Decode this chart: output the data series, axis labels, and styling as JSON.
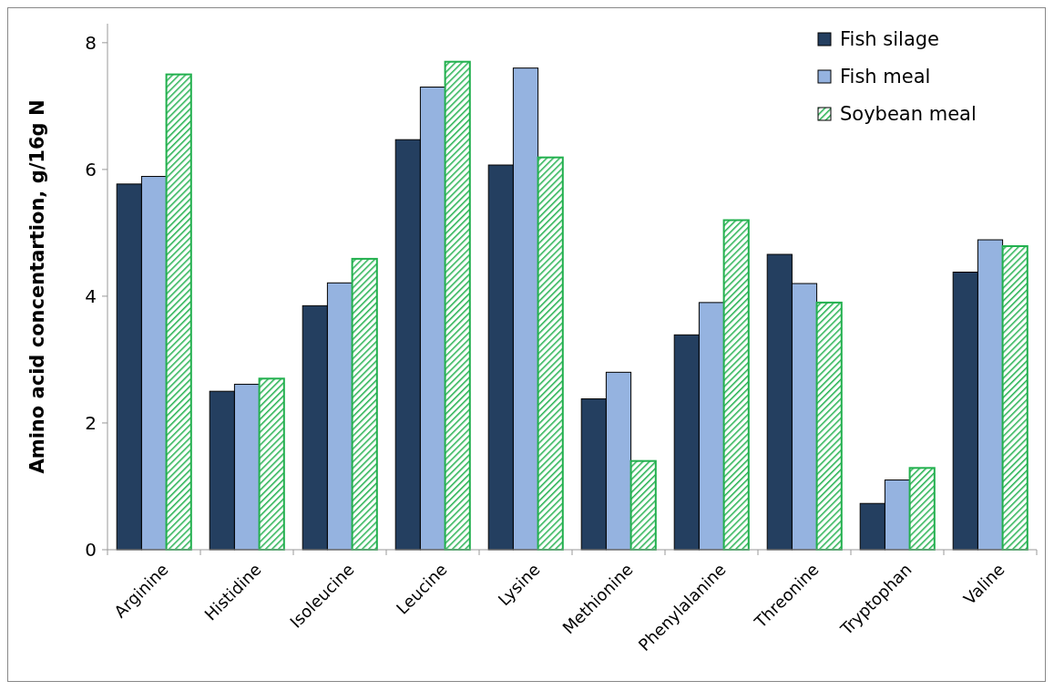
{
  "chart_data": {
    "type": "bar",
    "ylabel": "Amino acid concentartion, g/16g N",
    "categories": [
      "Arginine",
      "Histidine",
      "Isoleucine",
      "Leucine",
      "Lysine",
      "Methionine",
      "Phenylalanine",
      "Threonine",
      "Tryptophan",
      "Valine"
    ],
    "series": [
      {
        "name": "Fish silage",
        "color": "#243f60",
        "values": [
          5.77,
          2.5,
          3.85,
          6.47,
          6.07,
          2.38,
          3.39,
          4.66,
          0.73,
          4.38
        ]
      },
      {
        "name": "Fish meal",
        "color": "#95b3e0",
        "values": [
          5.89,
          2.61,
          4.21,
          7.3,
          7.6,
          2.8,
          3.9,
          4.2,
          1.1,
          4.89
        ]
      },
      {
        "name": "Soybean meal",
        "color": "#22b04e",
        "values": [
          7.5,
          2.7,
          4.59,
          7.7,
          6.19,
          1.4,
          5.2,
          3.9,
          1.29,
          4.79
        ]
      }
    ],
    "ylim": [
      0,
      8.3
    ],
    "yticks": [
      0,
      2,
      4,
      6,
      8
    ],
    "legend": "top right",
    "grid": false
  }
}
